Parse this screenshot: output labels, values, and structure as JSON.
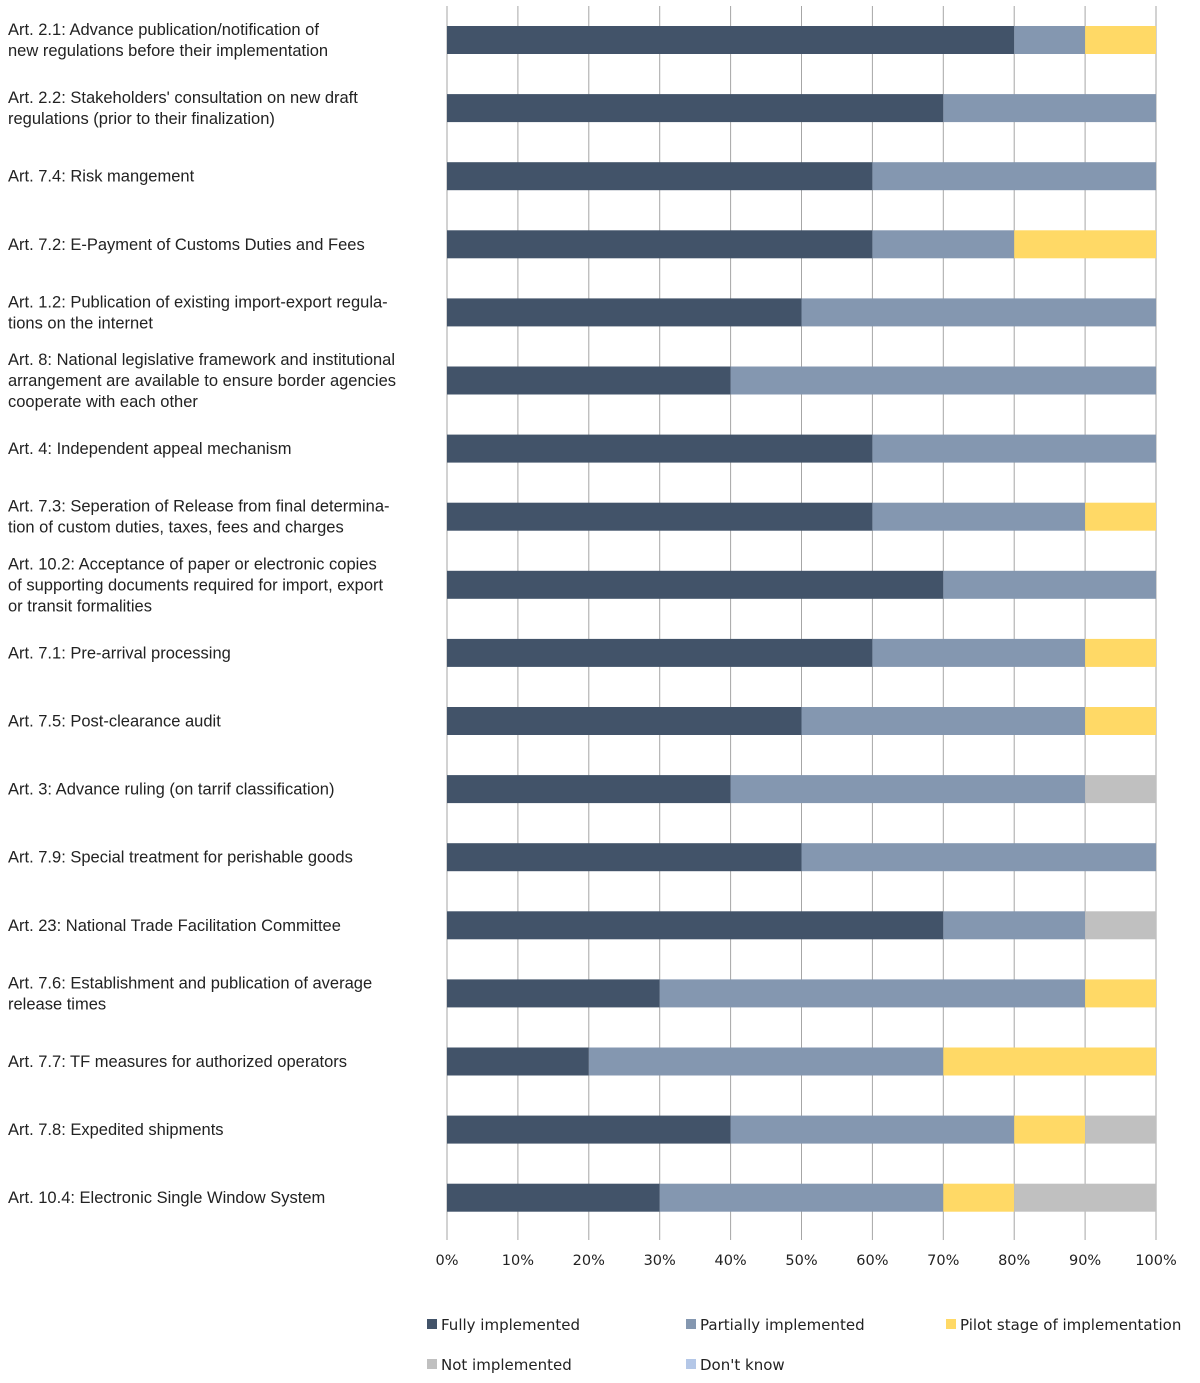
{
  "chart_data": {
    "type": "bar",
    "orientation": "horizontal",
    "stacked": true,
    "grid": true,
    "legend_position": "bottom",
    "xlim": [
      0,
      100
    ],
    "x_ticks": [
      "0%",
      "10%",
      "20%",
      "30%",
      "40%",
      "50%",
      "60%",
      "70%",
      "80%",
      "90%",
      "100%"
    ],
    "categories": [
      [
        "Art. 2.1: Advance publication/notification of",
        "new regulations before their implementation"
      ],
      [
        "Art. 2.2: Stakeholders' consultation on new draft",
        "regulations (prior to their finalization)"
      ],
      [
        "Art. 7.4: Risk mangement"
      ],
      [
        "Art. 7.2: E-Payment of Customs Duties and Fees"
      ],
      [
        "Art. 1.2: Publication of existing import-export regula-",
        "tions on the internet"
      ],
      [
        "Art. 8: National legislative framework and institutional",
        "arrangement are available to ensure border agencies",
        "cooperate with each other"
      ],
      [
        "Art. 4: Independent appeal mechanism"
      ],
      [
        "Art. 7.3: Seperation of Release from final  determina-",
        "tion of custom duties, taxes, fees and charges"
      ],
      [
        "Art. 10.2: Acceptance of paper or electronic copies",
        "of supporting documents required for import, export",
        "or transit formalities"
      ],
      [
        "Art. 7.1: Pre-arrival processing"
      ],
      [
        "Art. 7.5: Post-clearance audit"
      ],
      [
        "Art. 3: Advance ruling (on tarrif classification)"
      ],
      [
        "Art. 7.9: Special treatment for perishable goods"
      ],
      [
        "Art. 23: National Trade Facilitation Committee"
      ],
      [
        "Art. 7.6: Establishment and publication of average",
        "release times"
      ],
      [
        "Art. 7.7: TF measures for authorized operators"
      ],
      [
        "Art. 7.8: Expedited shipments"
      ],
      [
        "Art. 10.4: Electronic Single Window System"
      ]
    ],
    "series": [
      {
        "name": "Fully implemented",
        "color": "#425369",
        "values": [
          80,
          70,
          60,
          60,
          50,
          40,
          60,
          60,
          70,
          60,
          50,
          40,
          50,
          70,
          30,
          20,
          40,
          30
        ]
      },
      {
        "name": "Partially implemented",
        "color": "#8497b0",
        "values": [
          10,
          30,
          40,
          20,
          50,
          60,
          40,
          30,
          30,
          30,
          40,
          50,
          50,
          20,
          60,
          50,
          40,
          40
        ]
      },
      {
        "name": "Pilot stage of implementation",
        "color": "#ffd966",
        "values": [
          10,
          0,
          0,
          20,
          0,
          0,
          0,
          10,
          0,
          10,
          10,
          0,
          0,
          0,
          10,
          30,
          10,
          10
        ]
      },
      {
        "name": "Not implemented",
        "color": "#c0c0c0",
        "values": [
          0,
          0,
          0,
          0,
          0,
          0,
          0,
          0,
          0,
          0,
          0,
          10,
          0,
          10,
          0,
          0,
          10,
          20
        ]
      },
      {
        "name": "Don't know",
        "color": "#b4c7e7",
        "values": [
          0,
          0,
          0,
          0,
          0,
          0,
          0,
          0,
          0,
          0,
          0,
          0,
          0,
          0,
          0,
          0,
          0,
          0
        ]
      }
    ]
  }
}
